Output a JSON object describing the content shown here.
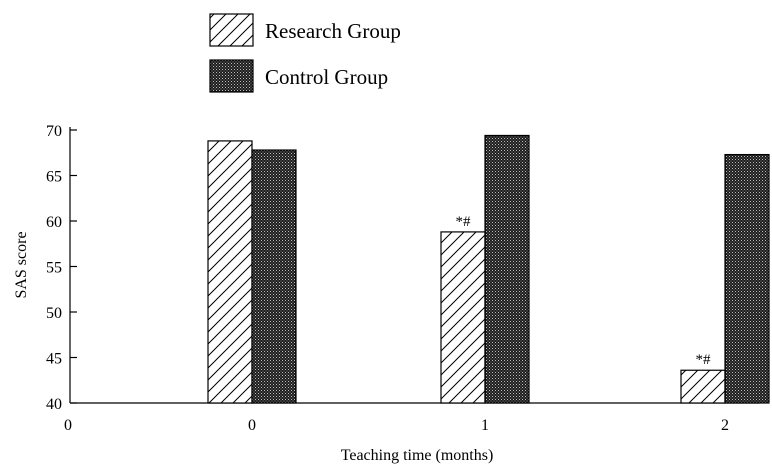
{
  "chart_data": {
    "type": "bar",
    "categories": [
      "0",
      "1",
      "2"
    ],
    "x_axis_origin_label": "0",
    "series": [
      {
        "name": "Research Group",
        "values": [
          68.8,
          58.8,
          43.6
        ],
        "pattern": "hatch",
        "annotations": [
          "",
          "*#",
          "*#"
        ]
      },
      {
        "name": "Control Group",
        "values": [
          67.8,
          69.4,
          67.3
        ],
        "pattern": "dots"
      }
    ],
    "xlabel": "Teaching time (months)",
    "ylabel": "SAS score",
    "ylim": [
      40,
      70
    ],
    "yticks": [
      40,
      45,
      50,
      55,
      60,
      65,
      70
    ],
    "grid": false,
    "legend_position": "top-center"
  }
}
